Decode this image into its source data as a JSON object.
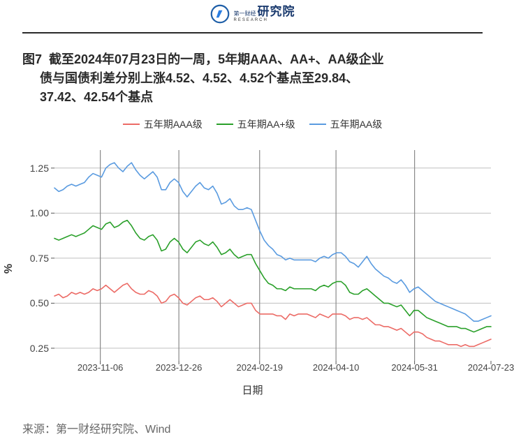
{
  "logo": {
    "main_text": "研究院",
    "pre_text": "第一财经",
    "sub_text": "RESEARCH",
    "circle_color": "#1f5fa8",
    "accent_color": "#2a7de1"
  },
  "title": {
    "line1": "图7  截至2024年07月23日的一周，5年期AAA、AA+、AA级企业",
    "line2": "     债与国债利差分别上涨4.52、4.52、4.52个基点至29.84、",
    "line3": "     37.42、42.54个基点",
    "font_size": 18,
    "color": "#2a2a2a"
  },
  "legend": {
    "items": [
      {
        "label": "五年期AAA级",
        "color": "#ec6b66"
      },
      {
        "label": "五年期AA+级",
        "color": "#2aa02a"
      },
      {
        "label": "五年期AA级",
        "color": "#5a9be0"
      }
    ]
  },
  "chart": {
    "type": "line",
    "y_axis": {
      "label": "%",
      "ticks": [
        0.25,
        0.5,
        0.75,
        1.0,
        1.25
      ],
      "min": 0.18,
      "max": 1.35,
      "grid_color": "#bfbfbf"
    },
    "x_axis": {
      "label": "日期",
      "tick_labels": [
        "2023-11-06",
        "2023-12-26",
        "2024-02-19",
        "2024-04-10",
        "2024-05-31",
        "2024-07-23"
      ],
      "tick_positions": [
        0.105,
        0.285,
        0.47,
        0.645,
        0.825,
        1.0
      ],
      "grid_positions": [
        0.105,
        0.285,
        0.47,
        0.645,
        0.825
      ],
      "grid_color": "#8a8a8a"
    },
    "background_color": "#ffffff",
    "line_width": 1.6,
    "series": {
      "aaa": {
        "color": "#ec6b66",
        "values": [
          0.54,
          0.55,
          0.53,
          0.54,
          0.56,
          0.55,
          0.56,
          0.55,
          0.56,
          0.58,
          0.57,
          0.58,
          0.6,
          0.58,
          0.56,
          0.58,
          0.6,
          0.61,
          0.58,
          0.56,
          0.55,
          0.55,
          0.57,
          0.56,
          0.54,
          0.5,
          0.51,
          0.54,
          0.55,
          0.53,
          0.5,
          0.49,
          0.51,
          0.53,
          0.54,
          0.52,
          0.52,
          0.53,
          0.51,
          0.48,
          0.5,
          0.52,
          0.5,
          0.48,
          0.49,
          0.5,
          0.5,
          0.46,
          0.44,
          0.44,
          0.44,
          0.44,
          0.43,
          0.43,
          0.41,
          0.44,
          0.43,
          0.44,
          0.44,
          0.44,
          0.43,
          0.42,
          0.44,
          0.43,
          0.42,
          0.44,
          0.44,
          0.44,
          0.43,
          0.41,
          0.42,
          0.42,
          0.41,
          0.42,
          0.4,
          0.38,
          0.38,
          0.37,
          0.37,
          0.36,
          0.35,
          0.36,
          0.34,
          0.32,
          0.34,
          0.34,
          0.33,
          0.31,
          0.3,
          0.29,
          0.29,
          0.28,
          0.27,
          0.27,
          0.27,
          0.26,
          0.27,
          0.26,
          0.26,
          0.27,
          0.28,
          0.29,
          0.3
        ]
      },
      "aaplus": {
        "color": "#2aa02a",
        "values": [
          0.86,
          0.85,
          0.86,
          0.87,
          0.88,
          0.87,
          0.88,
          0.89,
          0.91,
          0.93,
          0.92,
          0.91,
          0.94,
          0.95,
          0.92,
          0.93,
          0.95,
          0.96,
          0.93,
          0.89,
          0.86,
          0.85,
          0.87,
          0.88,
          0.85,
          0.79,
          0.8,
          0.84,
          0.86,
          0.84,
          0.8,
          0.78,
          0.81,
          0.84,
          0.85,
          0.83,
          0.82,
          0.84,
          0.81,
          0.77,
          0.78,
          0.8,
          0.77,
          0.75,
          0.76,
          0.77,
          0.77,
          0.72,
          0.68,
          0.64,
          0.61,
          0.6,
          0.58,
          0.58,
          0.57,
          0.59,
          0.58,
          0.58,
          0.58,
          0.58,
          0.58,
          0.57,
          0.59,
          0.6,
          0.59,
          0.61,
          0.62,
          0.62,
          0.6,
          0.56,
          0.55,
          0.55,
          0.57,
          0.58,
          0.56,
          0.54,
          0.52,
          0.5,
          0.5,
          0.49,
          0.48,
          0.49,
          0.46,
          0.43,
          0.46,
          0.46,
          0.44,
          0.42,
          0.41,
          0.4,
          0.39,
          0.38,
          0.37,
          0.37,
          0.37,
          0.36,
          0.36,
          0.35,
          0.34,
          0.35,
          0.36,
          0.37,
          0.37
        ]
      },
      "aa": {
        "color": "#5a9be0",
        "values": [
          1.14,
          1.12,
          1.13,
          1.15,
          1.16,
          1.15,
          1.16,
          1.17,
          1.2,
          1.22,
          1.21,
          1.2,
          1.25,
          1.27,
          1.28,
          1.25,
          1.23,
          1.26,
          1.28,
          1.24,
          1.21,
          1.19,
          1.21,
          1.23,
          1.2,
          1.13,
          1.13,
          1.17,
          1.19,
          1.17,
          1.12,
          1.09,
          1.12,
          1.15,
          1.17,
          1.14,
          1.13,
          1.15,
          1.11,
          1.05,
          1.06,
          1.08,
          1.04,
          1.02,
          1.02,
          1.03,
          1.02,
          0.96,
          0.9,
          0.85,
          0.82,
          0.8,
          0.77,
          0.76,
          0.74,
          0.75,
          0.74,
          0.74,
          0.74,
          0.74,
          0.74,
          0.73,
          0.75,
          0.76,
          0.75,
          0.77,
          0.78,
          0.78,
          0.76,
          0.73,
          0.72,
          0.7,
          0.73,
          0.76,
          0.72,
          0.69,
          0.67,
          0.65,
          0.64,
          0.62,
          0.61,
          0.63,
          0.6,
          0.56,
          0.58,
          0.59,
          0.57,
          0.55,
          0.53,
          0.51,
          0.5,
          0.49,
          0.48,
          0.47,
          0.46,
          0.45,
          0.44,
          0.42,
          0.4,
          0.4,
          0.41,
          0.42,
          0.43
        ]
      }
    }
  },
  "source": "来源：第一财经研究院、Wind"
}
